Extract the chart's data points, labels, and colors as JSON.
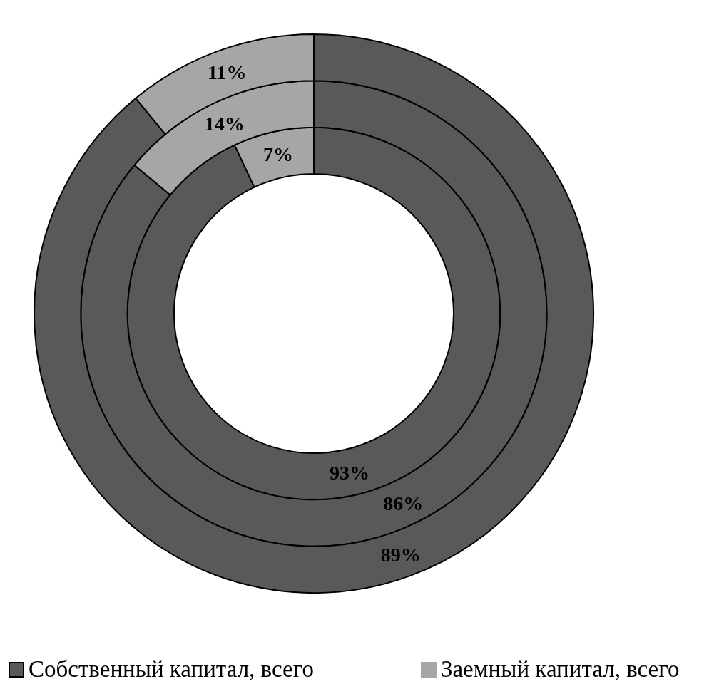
{
  "chart_data": {
    "type": "donut",
    "categories": [
      "Собственный капитал, всего",
      "Заемный капитал, всего"
    ],
    "colors": [
      "#595959",
      "#a6a6a6"
    ],
    "series": [
      {
        "values": [
          93,
          7
        ],
        "value_labels": [
          "93%",
          "7%"
        ]
      },
      {
        "values": [
          86,
          14
        ],
        "value_labels": [
          "86%",
          "14%"
        ]
      },
      {
        "values": [
          89,
          11
        ],
        "value_labels": [
          "89%",
          "11%"
        ]
      }
    ],
    "legend": "bottom"
  }
}
